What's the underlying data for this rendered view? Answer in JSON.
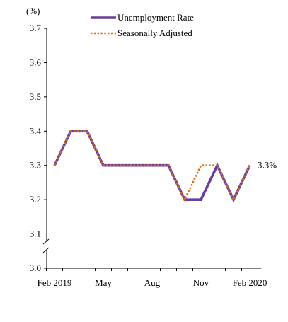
{
  "chart_data": {
    "type": "line",
    "unit_label": "(%)",
    "x": [
      "Feb 2019",
      "Mar 2019",
      "Apr 2019",
      "May 2019",
      "Jun 2019",
      "Jul 2019",
      "Aug 2019",
      "Sep 2019",
      "Oct 2019",
      "Nov 2019",
      "Dec 2019",
      "Jan 2020",
      "Feb 2020"
    ],
    "x_tick_labels": [
      {
        "index": 0,
        "label": "Feb 2019"
      },
      {
        "index": 3,
        "label": "May"
      },
      {
        "index": 6,
        "label": "Aug"
      },
      {
        "index": 9,
        "label": "Nov"
      },
      {
        "index": 12,
        "label": "Feb 2020"
      }
    ],
    "ylim": [
      3.0,
      3.7
    ],
    "yticks": [
      "3.0",
      "3.1",
      "3.2",
      "3.3",
      "3.4",
      "3.5",
      "3.6",
      "3.7"
    ],
    "axis_break": true,
    "series": [
      {
        "name": "Unemployment Rate",
        "color": "#6a3d9a",
        "style": "solid",
        "values": [
          3.3,
          3.4,
          3.4,
          3.3,
          3.3,
          3.3,
          3.3,
          3.3,
          3.2,
          3.2,
          3.3,
          3.2,
          3.3
        ]
      },
      {
        "name": "Seasonally Adjusted",
        "color": "#d4731a",
        "style": "dotted",
        "values": [
          3.3,
          3.4,
          3.4,
          3.3,
          3.3,
          3.3,
          3.3,
          3.3,
          3.2,
          3.3,
          3.3,
          3.2,
          3.3
        ]
      }
    ],
    "end_label": "3.3%",
    "legend_position": "top-center",
    "grid": false
  }
}
